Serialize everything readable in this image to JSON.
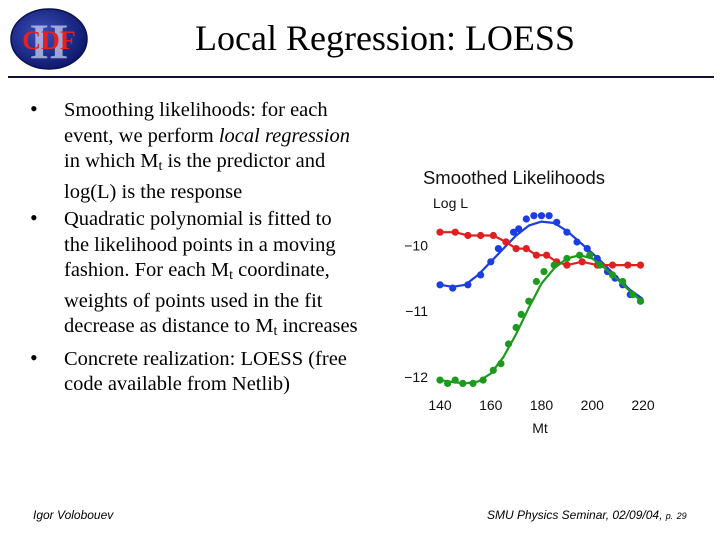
{
  "logo": {
    "text": "CDF",
    "numeral": "II"
  },
  "slide": {
    "title": "Local Regression: LOESS"
  },
  "bullets": [
    {
      "parts": [
        "Smoothing likelihoods: for each event, we perform ",
        "local regression",
        " in which M",
        "t",
        " is the predictor and log(L) is the response"
      ]
    },
    {
      "parts": [
        "Quadratic polynomial is fitted to the likelihood points in a moving fashion. For each M",
        "t",
        " coordinate, weights of points used in the fit decrease as distance to M",
        "t",
        " increases"
      ]
    },
    {
      "parts": [
        "Concrete realization: LOESS (free code available from Netlib)"
      ]
    }
  ],
  "chart_data": {
    "type": "scatter",
    "title": "Smoothed Likelihoods",
    "ylabel": "Log L",
    "xlabel": "Mt",
    "xlim": [
      140,
      220
    ],
    "ylim": [
      -12.2,
      -9.25
    ],
    "xticks": [
      140,
      160,
      180,
      200,
      220
    ],
    "yticks": [
      -10,
      -11,
      -12
    ],
    "ytick_labels": [
      "−10",
      "−11",
      "−12"
    ],
    "series": [
      {
        "name": "blue",
        "color": "#1b3ee0",
        "x": [
          140,
          145,
          151,
          156,
          160,
          163,
          166,
          169,
          171,
          174,
          177,
          180,
          183,
          186,
          190,
          194,
          198,
          202,
          206,
          209,
          212,
          215,
          219
        ],
        "y": [
          -10.6,
          -10.65,
          -10.6,
          -10.45,
          -10.25,
          -10.05,
          -9.95,
          -9.8,
          -9.75,
          -9.6,
          -9.55,
          -9.55,
          -9.55,
          -9.65,
          -9.8,
          -9.95,
          -10.05,
          -10.2,
          -10.4,
          -10.5,
          -10.6,
          -10.75,
          -10.85
        ],
        "fit_x": [
          140,
          145,
          150,
          155,
          160,
          165,
          170,
          175,
          180,
          185,
          190,
          195,
          200,
          205,
          210,
          215,
          220
        ],
        "fit_y": [
          -10.6,
          -10.63,
          -10.6,
          -10.45,
          -10.25,
          -10.05,
          -9.85,
          -9.7,
          -9.64,
          -9.66,
          -9.78,
          -9.95,
          -10.12,
          -10.3,
          -10.5,
          -10.68,
          -10.82
        ]
      },
      {
        "name": "red",
        "color": "#e02020",
        "x": [
          140,
          146,
          151,
          156,
          161,
          166,
          170,
          174,
          178,
          182,
          186,
          190,
          196,
          202,
          208,
          214,
          219
        ],
        "y": [
          -9.8,
          -9.8,
          -9.85,
          -9.85,
          -9.85,
          -9.95,
          -10.05,
          -10.05,
          -10.15,
          -10.15,
          -10.25,
          -10.3,
          -10.25,
          -10.3,
          -10.3,
          -10.3,
          -10.3
        ]
      },
      {
        "name": "green",
        "color": "#1d9a1d",
        "x": [
          140,
          143,
          146,
          149,
          153,
          157,
          161,
          164,
          167,
          170,
          172,
          175,
          178,
          181,
          185,
          190,
          195,
          199,
          203,
          208,
          212,
          216,
          219
        ],
        "y": [
          -12.05,
          -12.1,
          -12.05,
          -12.1,
          -12.1,
          -12.05,
          -11.9,
          -11.8,
          -11.5,
          -11.25,
          -11.05,
          -10.85,
          -10.55,
          -10.4,
          -10.3,
          -10.2,
          -10.15,
          -10.15,
          -10.3,
          -10.45,
          -10.55,
          -10.75,
          -10.85
        ],
        "fit_x": [
          140,
          145,
          150,
          155,
          160,
          165,
          170,
          175,
          180,
          185,
          190,
          195,
          200,
          205,
          210,
          215,
          220
        ],
        "fit_y": [
          -12.05,
          -12.08,
          -12.1,
          -12.07,
          -11.95,
          -11.7,
          -11.35,
          -10.95,
          -10.58,
          -10.35,
          -10.2,
          -10.15,
          -10.2,
          -10.35,
          -10.52,
          -10.7,
          -10.87
        ]
      }
    ]
  },
  "footer": {
    "author": "Igor Volobouev",
    "event": "SMU Physics Seminar, 02/09/04, ",
    "page_prefix": "p.",
    "page": "29"
  }
}
